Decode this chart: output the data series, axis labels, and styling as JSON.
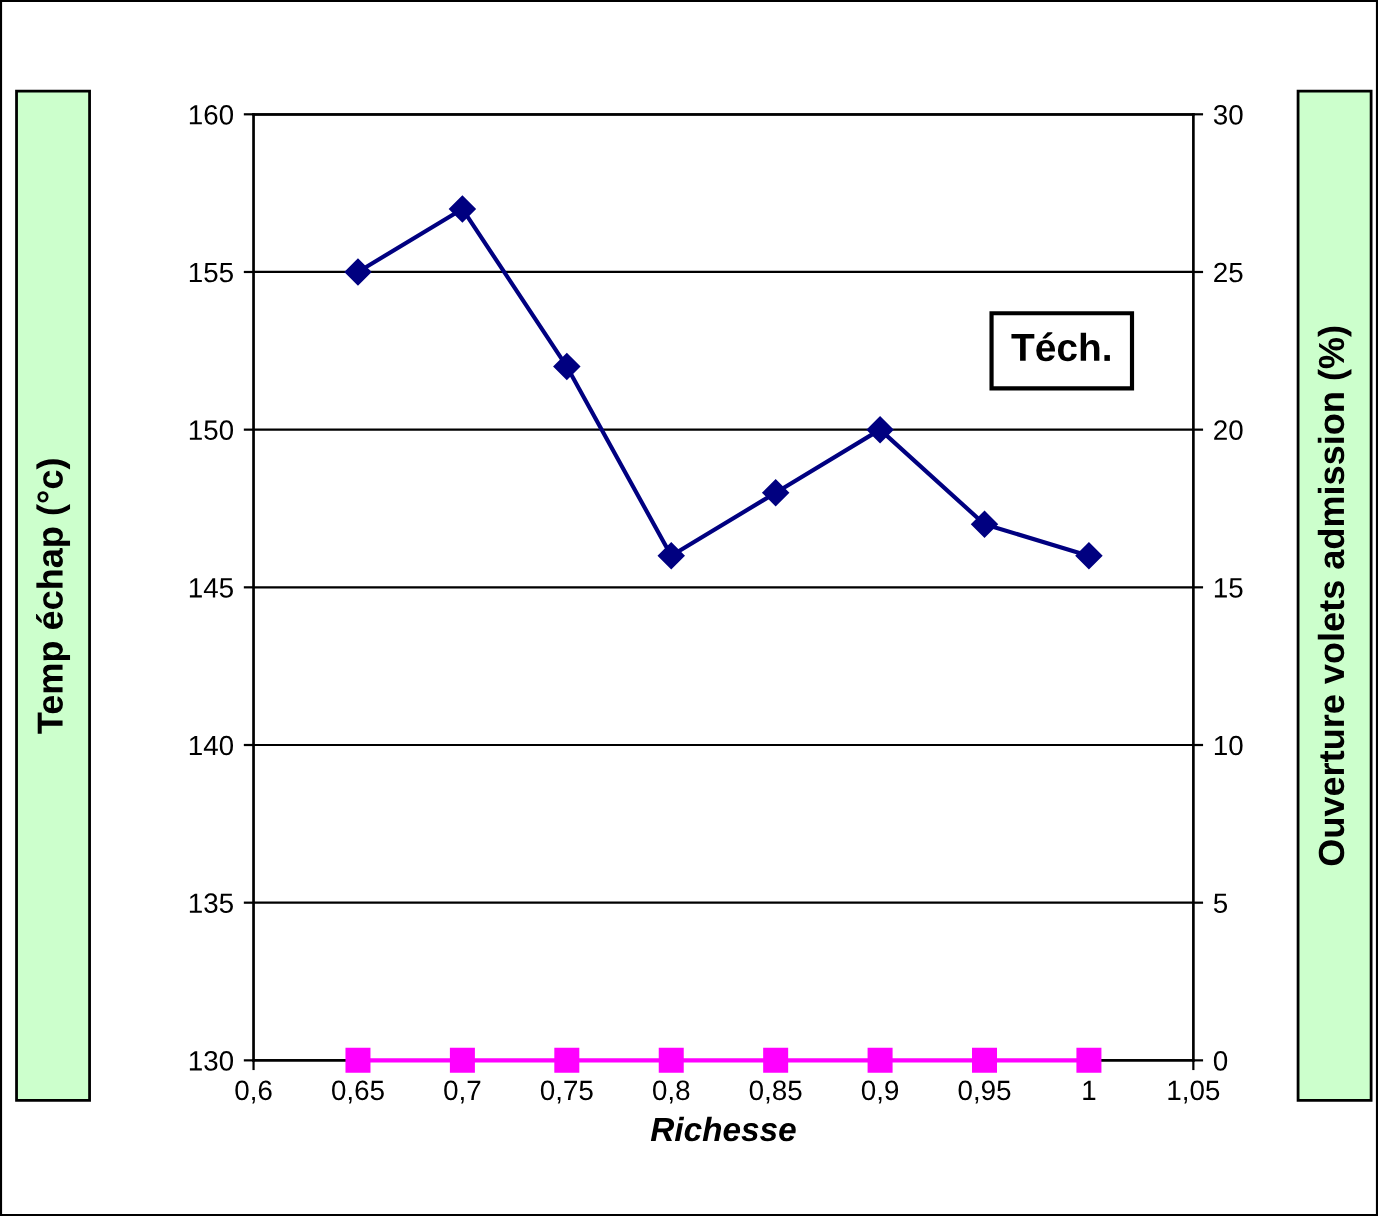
{
  "chart_data": {
    "type": "line",
    "xlabel": "Richesse",
    "ylabel": "Temp échap (°c)",
    "y2label": "Ouverture volets admission (%)",
    "x": [
      0.65,
      0.7,
      0.75,
      0.8,
      0.85,
      0.9,
      0.95,
      1
    ],
    "series": [
      {
        "color": "#000080",
        "marker": "diamond",
        "values": [
          155,
          157,
          152,
          146,
          148,
          150,
          147,
          146
        ]
      },
      {
        "color": "#ff00ff",
        "marker": "square",
        "axis": "y2",
        "values": [
          0,
          0,
          0,
          0,
          0,
          0,
          0,
          0
        ]
      }
    ],
    "xlim": [
      0.6,
      1.05
    ],
    "xticks": [
      {
        "value": 0.6,
        "label": "0,6"
      },
      {
        "value": 0.65,
        "label": "0,65"
      },
      {
        "value": 0.7,
        "label": "0,7"
      },
      {
        "value": 0.75,
        "label": "0,75"
      },
      {
        "value": 0.8,
        "label": "0,8"
      },
      {
        "value": 0.85,
        "label": "0,85"
      },
      {
        "value": 0.9,
        "label": "0,9"
      },
      {
        "value": 0.95,
        "label": "0,95"
      },
      {
        "value": 1,
        "label": "1"
      },
      {
        "value": 1.05,
        "label": "1,05"
      }
    ],
    "ylim": [
      130,
      160
    ],
    "yticks": [
      130,
      135,
      140,
      145,
      150,
      155,
      160
    ],
    "y2lim": [
      0,
      30
    ],
    "y2ticks": [
      0,
      5,
      10,
      15,
      20,
      25,
      30
    ],
    "grid": "y",
    "annotations": [
      "Téch."
    ]
  }
}
